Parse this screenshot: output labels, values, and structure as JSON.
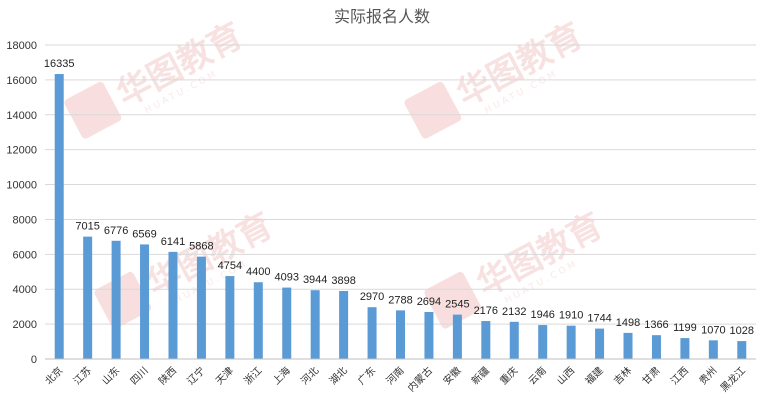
{
  "chart_data": {
    "type": "bar",
    "title": "实际报名人数",
    "xlabel": "",
    "ylabel": "",
    "ylim": [
      0,
      18000
    ],
    "yticks": [
      0,
      2000,
      4000,
      6000,
      8000,
      10000,
      12000,
      14000,
      16000,
      18000
    ],
    "grid": true,
    "legend": "none",
    "categories": [
      "北京",
      "江苏",
      "山东",
      "四川",
      "陕西",
      "辽宁",
      "天津",
      "浙江",
      "上海",
      "河北",
      "湖北",
      "广东",
      "河南",
      "内蒙古",
      "安徽",
      "新疆",
      "重庆",
      "云南",
      "山西",
      "福建",
      "吉林",
      "甘肃",
      "江西",
      "贵州",
      "黑龙江"
    ],
    "values": [
      16335,
      7015,
      6776,
      6569,
      6141,
      5868,
      4754,
      4400,
      4093,
      3944,
      3898,
      2970,
      2788,
      2694,
      2545,
      2176,
      2132,
      1946,
      1910,
      1744,
      1498,
      1366,
      1199,
      1070,
      1028
    ],
    "bar_color": "#5b9bd5"
  },
  "watermark": {
    "brand": "华图教育",
    "domain": "HUATU.COM",
    "color": "#e8a0a0"
  }
}
